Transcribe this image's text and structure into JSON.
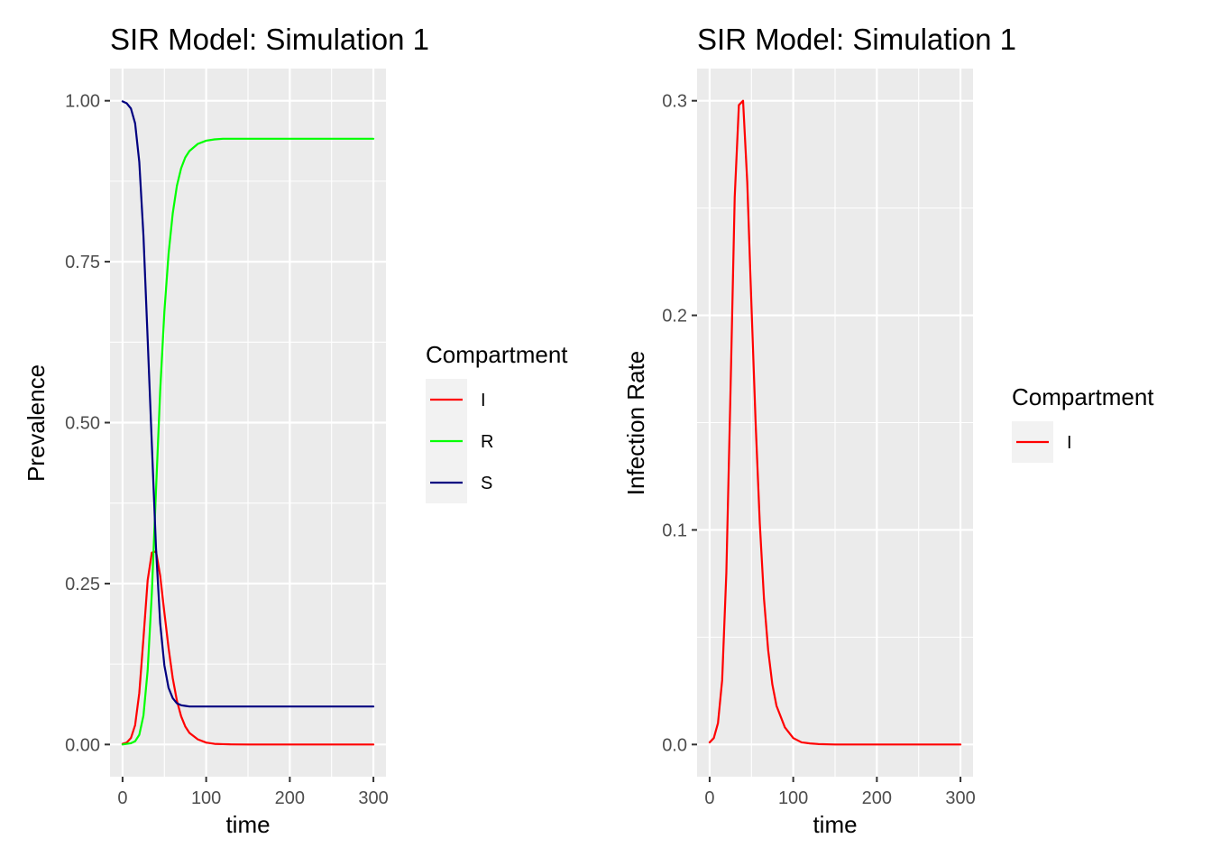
{
  "chart_data": [
    {
      "type": "line",
      "title": "SIR Model: Simulation 1",
      "xlabel": "time",
      "ylabel": "Prevalence",
      "xlim": [
        -15,
        315
      ],
      "ylim": [
        -0.05,
        1.05
      ],
      "xticks": [
        0,
        100,
        200,
        300
      ],
      "xtick_labels": [
        "0",
        "100",
        "200",
        "300"
      ],
      "yticks": [
        0,
        0.25,
        0.5,
        0.75,
        1.0
      ],
      "ytick_labels": [
        "0.00",
        "0.25",
        "0.50",
        "0.75",
        "1.00"
      ],
      "grid": true,
      "legend": {
        "title": "Compartment",
        "position": "right"
      },
      "x": [
        0,
        5,
        10,
        15,
        20,
        25,
        30,
        35,
        40,
        45,
        50,
        55,
        60,
        65,
        70,
        75,
        80,
        90,
        100,
        110,
        120,
        130,
        150,
        175,
        200,
        250,
        300
      ],
      "series": [
        {
          "name": "I",
          "color": "#ff0000",
          "values": [
            0.001,
            0.003,
            0.01,
            0.03,
            0.08,
            0.165,
            0.255,
            0.298,
            0.3,
            0.262,
            0.205,
            0.15,
            0.103,
            0.068,
            0.044,
            0.028,
            0.018,
            0.008,
            0.003,
            0.001,
            0.0005,
            0.0002,
            0.0,
            0.0,
            0.0,
            0.0,
            0.0
          ]
        },
        {
          "name": "R",
          "color": "#00ff00",
          "values": [
            0.0,
            0.001,
            0.002,
            0.005,
            0.015,
            0.045,
            0.115,
            0.235,
            0.395,
            0.55,
            0.672,
            0.762,
            0.825,
            0.868,
            0.895,
            0.912,
            0.922,
            0.933,
            0.938,
            0.94,
            0.941,
            0.941,
            0.941,
            0.941,
            0.941,
            0.941,
            0.941
          ]
        },
        {
          "name": "S",
          "color": "#000080",
          "values": [
            0.999,
            0.996,
            0.988,
            0.965,
            0.905,
            0.79,
            0.63,
            0.467,
            0.305,
            0.188,
            0.123,
            0.088,
            0.072,
            0.064,
            0.061,
            0.06,
            0.059,
            0.059,
            0.059,
            0.059,
            0.059,
            0.059,
            0.059,
            0.059,
            0.059,
            0.059,
            0.059
          ]
        }
      ]
    },
    {
      "type": "line",
      "title": "SIR Model: Simulation 1",
      "xlabel": "time",
      "ylabel": "Infection Rate",
      "xlim": [
        -15,
        315
      ],
      "ylim": [
        -0.015,
        0.315
      ],
      "xticks": [
        0,
        100,
        200,
        300
      ],
      "xtick_labels": [
        "0",
        "100",
        "200",
        "300"
      ],
      "yticks": [
        0,
        0.1,
        0.2,
        0.3
      ],
      "ytick_labels": [
        "0.0",
        "0.1",
        "0.2",
        "0.3"
      ],
      "grid": true,
      "legend": {
        "title": "Compartment",
        "position": "right"
      },
      "x": [
        0,
        5,
        10,
        15,
        20,
        25,
        30,
        35,
        40,
        45,
        50,
        55,
        60,
        65,
        70,
        75,
        80,
        90,
        100,
        110,
        120,
        130,
        150,
        175,
        200,
        250,
        300
      ],
      "series": [
        {
          "name": "I",
          "color": "#ff0000",
          "values": [
            0.001,
            0.003,
            0.01,
            0.03,
            0.08,
            0.165,
            0.255,
            0.298,
            0.3,
            0.262,
            0.205,
            0.15,
            0.103,
            0.068,
            0.044,
            0.028,
            0.018,
            0.008,
            0.003,
            0.001,
            0.0005,
            0.0002,
            0.0,
            0.0,
            0.0,
            0.0,
            0.0
          ]
        }
      ]
    }
  ]
}
